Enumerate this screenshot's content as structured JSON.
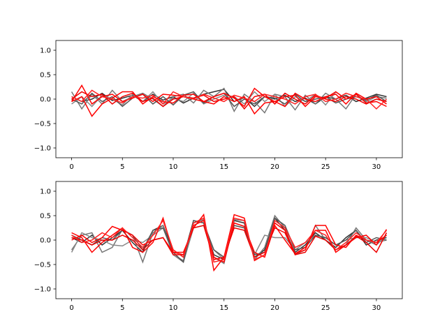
{
  "chart_data": [
    {
      "type": "line",
      "xlim": [
        -1.55,
        32.55
      ],
      "ylim": [
        -1.2,
        1.2
      ],
      "xticks": [
        0,
        5,
        10,
        15,
        20,
        25,
        30
      ],
      "yticks": [
        -1.0,
        -0.5,
        0.0,
        0.5,
        1.0
      ],
      "xtick_labels": [
        "0",
        "5",
        "10",
        "15",
        "20",
        "25",
        "30"
      ],
      "ytick_labels": [
        "−1.0",
        "−0.5",
        "0.0",
        "0.5",
        "1.0"
      ],
      "grid": false,
      "series": [
        {
          "color": "#333333",
          "values": [
            0.05,
            -0.05,
            0.0,
            0.12,
            -0.03,
            0.02,
            0.08,
            -0.05,
            0.1,
            -0.02,
            0.05,
            -0.08,
            0.02,
            0.1,
            0.15,
            0.2,
            -0.05,
            0.03,
            -0.15,
            0.05,
            0.0,
            0.08,
            -0.05,
            0.02,
            -0.1,
            0.05,
            0.0,
            0.08,
            -0.05,
            0.02,
            0.1,
            0.05
          ]
        },
        {
          "color": "#777777",
          "values": [
            0.15,
            -0.2,
            0.1,
            -0.1,
            0.18,
            -0.05,
            0.05,
            0.12,
            0.0,
            -0.15,
            0.05,
            0.1,
            -0.08,
            0.18,
            0.05,
            0.22,
            -0.25,
            0.1,
            -0.05,
            -0.28,
            0.1,
            0.05,
            -0.22,
            0.08,
            -0.1,
            0.12,
            0.0,
            -0.2,
            0.1,
            -0.05,
            0.05,
            0.02
          ]
        },
        {
          "color": "#888888",
          "values": [
            -0.1,
            0.05,
            -0.15,
            0.08,
            0.0,
            -0.12,
            0.1,
            -0.05,
            0.15,
            -0.1,
            0.02,
            -0.05,
            0.12,
            -0.1,
            0.0,
            0.08,
            0.05,
            -0.1,
            0.15,
            -0.05,
            0.1,
            -0.15,
            0.05,
            -0.05,
            0.1,
            -0.12,
            0.15,
            0.0,
            0.1,
            -0.08,
            0.0,
            -0.05
          ]
        },
        {
          "color": "#555555",
          "values": [
            0.0,
            -0.1,
            0.12,
            -0.05,
            0.05,
            -0.15,
            0.02,
            0.1,
            -0.1,
            0.05,
            -0.12,
            0.08,
            0.15,
            -0.08,
            0.05,
            0.12,
            -0.15,
            0.0,
            -0.1,
            0.05,
            0.02,
            -0.1,
            0.1,
            -0.05,
            0.0,
            0.05,
            -0.08,
            0.0,
            0.05,
            -0.02,
            0.08,
            -0.05
          ]
        },
        {
          "color": "#ff0000",
          "values": [
            -0.05,
            0.28,
            -0.1,
            0.05,
            0.1,
            -0.05,
            0.02,
            0.1,
            -0.05,
            0.1,
            0.08,
            0.05,
            0.0,
            -0.05,
            0.05,
            0.12,
            0.02,
            -0.15,
            0.22,
            0.05,
            -0.05,
            -0.15,
            0.12,
            0.0,
            -0.05,
            0.05,
            0.1,
            -0.1,
            0.12,
            0.0,
            0.05,
            -0.1
          ]
        },
        {
          "color": "#ff0000",
          "values": [
            -0.05,
            0.05,
            -0.35,
            -0.1,
            0.02,
            0.15,
            0.15,
            -0.1,
            0.05,
            -0.05,
            -0.08,
            0.08,
            0.1,
            -0.05,
            -0.1,
            0.05,
            -0.05,
            0.05,
            -0.3,
            -0.08,
            -0.05,
            0.05,
            0.08,
            -0.15,
            0.05,
            0.02,
            0.15,
            0.0,
            0.1,
            -0.08,
            -0.05,
            -0.15
          ]
        },
        {
          "color": "#ee0000",
          "values": [
            0.0,
            0.15,
            0.05,
            0.1,
            -0.1,
            0.05,
            0.12,
            -0.05,
            0.02,
            -0.15,
            0.0,
            0.05,
            0.02,
            0.08,
            -0.05,
            0.0,
            0.05,
            -0.2,
            0.05,
            0.1,
            -0.1,
            0.12,
            0.0,
            -0.1,
            0.08,
            0.0,
            -0.05,
            0.05,
            0.0,
            -0.1,
            0.0,
            -0.05
          ]
        },
        {
          "color": "#ff2222",
          "values": [
            0.05,
            -0.05,
            0.18,
            0.05,
            0.0,
            -0.08,
            0.05,
            0.02,
            0.08,
            -0.1,
            0.15,
            0.05,
            0.0,
            0.1,
            0.02,
            -0.05,
            0.08,
            0.02,
            -0.05,
            0.1,
            0.05,
            0.0,
            -0.1,
            0.05,
            0.1,
            -0.05,
            0.0,
            0.12,
            0.05,
            0.0,
            -0.2,
            0.0
          ]
        }
      ]
    },
    {
      "type": "line",
      "xlim": [
        -1.55,
        32.55
      ],
      "ylim": [
        -1.2,
        1.2
      ],
      "xticks": [
        0,
        5,
        10,
        15,
        20,
        25,
        30
      ],
      "yticks": [
        -1.0,
        -0.5,
        0.0,
        0.5,
        1.0
      ],
      "xtick_labels": [
        "0",
        "5",
        "10",
        "15",
        "20",
        "25",
        "30"
      ],
      "ytick_labels": [
        "−1.0",
        "−0.5",
        "0.0",
        "0.5",
        "1.0"
      ],
      "grid": false,
      "series": [
        {
          "color": "#333333",
          "values": [
            0.05,
            -0.05,
            0.1,
            -0.1,
            0.05,
            0.2,
            -0.05,
            -0.25,
            0.2,
            0.3,
            -0.2,
            -0.35,
            0.4,
            0.35,
            -0.3,
            -0.4,
            0.4,
            0.35,
            -0.35,
            -0.2,
            0.45,
            0.2,
            -0.25,
            -0.1,
            0.15,
            0.0,
            -0.15,
            0.05,
            0.2,
            -0.1,
            0.0,
            0.05
          ]
        },
        {
          "color": "#777777",
          "values": [
            -0.2,
            0.1,
            0.15,
            -0.25,
            -0.15,
            0.22,
            0.1,
            -0.45,
            0.15,
            0.3,
            -0.3,
            -0.42,
            0.35,
            0.42,
            -0.35,
            -0.48,
            0.42,
            0.4,
            -0.4,
            -0.15,
            0.5,
            0.25,
            -0.3,
            -0.2,
            0.3,
            0.0,
            -0.2,
            -0.1,
            0.25,
            0.0,
            -0.1,
            0.1
          ]
        },
        {
          "color": "#888888",
          "values": [
            -0.25,
            0.15,
            0.05,
            0.0,
            -0.1,
            -0.12,
            0.0,
            -0.05,
            0.1,
            0.25,
            -0.3,
            -0.45,
            0.25,
            0.3,
            -0.2,
            -0.4,
            0.3,
            0.25,
            -0.3,
            0.1,
            0.05,
            0.05,
            -0.2,
            -0.05,
            0.1,
            0.05,
            -0.1,
            0.0,
            0.05,
            0.05,
            -0.05,
            0.0
          ]
        },
        {
          "color": "#555555",
          "values": [
            0.1,
            0.0,
            -0.1,
            0.05,
            0.0,
            0.2,
            0.1,
            -0.2,
            0.2,
            0.25,
            -0.25,
            -0.45,
            0.4,
            0.35,
            -0.2,
            -0.35,
            0.3,
            0.25,
            -0.3,
            -0.25,
            0.45,
            0.3,
            -0.2,
            -0.15,
            0.1,
            0.05,
            -0.1,
            0.0,
            0.2,
            -0.05,
            0.05,
            0.0
          ]
        },
        {
          "color": "#ff0000",
          "values": [
            0.15,
            0.05,
            -0.25,
            -0.05,
            0.1,
            0.25,
            -0.15,
            -0.25,
            -0.05,
            0.45,
            -0.25,
            -0.25,
            0.25,
            0.52,
            -0.62,
            -0.35,
            0.52,
            0.45,
            -0.42,
            -0.3,
            0.35,
            0.2,
            -0.28,
            -0.2,
            0.3,
            0.3,
            -0.1,
            -0.15,
            0.1,
            0.0,
            -0.05,
            0.1
          ]
        },
        {
          "color": "#ff0000",
          "values": [
            0.0,
            0.1,
            -0.05,
            0.05,
            0.28,
            0.2,
            0.1,
            -0.1,
            0.0,
            0.05,
            -0.25,
            -0.3,
            0.3,
            0.4,
            -0.35,
            -0.45,
            0.35,
            0.28,
            -0.25,
            -0.35,
            0.3,
            0.0,
            -0.28,
            -0.15,
            0.2,
            0.2,
            -0.25,
            -0.1,
            0.05,
            0.1,
            -0.1,
            0.22
          ]
        },
        {
          "color": "#ee0000",
          "values": [
            0.05,
            0.0,
            -0.1,
            0.0,
            0.0,
            0.1,
            0.0,
            -0.2,
            0.0,
            0.05,
            -0.3,
            -0.3,
            0.25,
            0.3,
            -0.4,
            -0.35,
            0.25,
            0.2,
            -0.35,
            -0.25,
            0.25,
            0.15,
            -0.3,
            -0.25,
            0.08,
            0.0,
            -0.2,
            -0.1,
            0.08,
            -0.05,
            -0.25,
            0.15
          ]
        },
        {
          "color": "#ff2222",
          "values": [
            0.1,
            -0.05,
            0.0,
            0.15,
            0.05,
            0.25,
            0.05,
            -0.15,
            0.1,
            0.4,
            -0.2,
            -0.35,
            0.35,
            0.45,
            -0.45,
            -0.4,
            0.45,
            0.4,
            -0.4,
            -0.3,
            0.4,
            0.25,
            -0.15,
            -0.05,
            0.2,
            0.1,
            -0.2,
            -0.05,
            0.15,
            0.0,
            -0.05,
            0.2
          ]
        }
      ]
    }
  ]
}
